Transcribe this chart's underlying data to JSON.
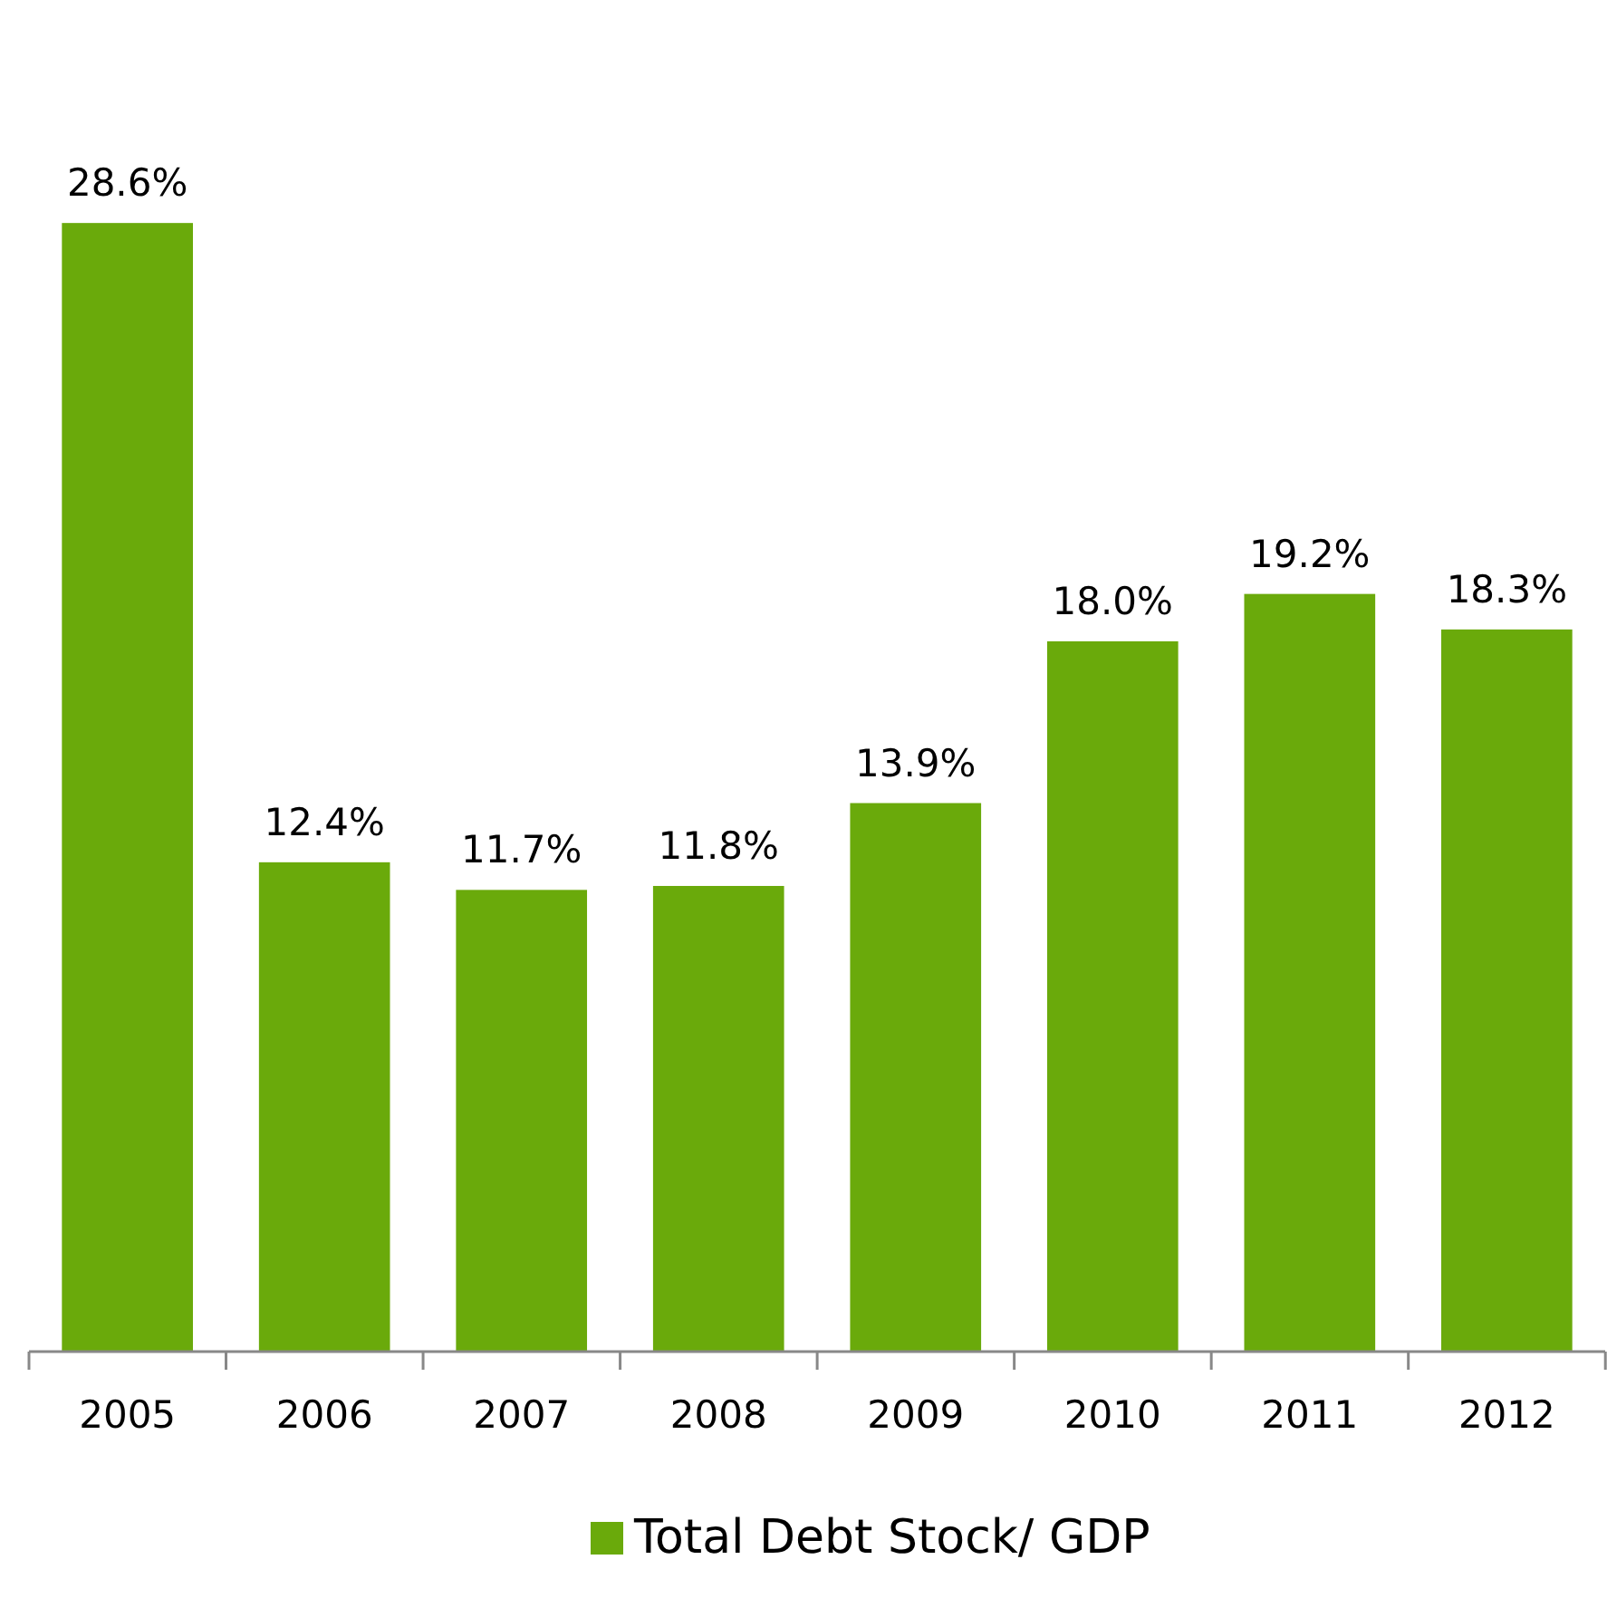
{
  "chart_data": {
    "type": "bar",
    "categories": [
      "2005",
      "2006",
      "2007",
      "2008",
      "2009",
      "2010",
      "2011",
      "2012"
    ],
    "series": [
      {
        "name": "Total Debt Stock/ GDP",
        "color": "#6aaa0b",
        "values": [
          28.6,
          12.4,
          11.7,
          11.8,
          13.9,
          18.0,
          19.2,
          18.3
        ],
        "value_labels": [
          "28.6%",
          "12.4%",
          "11.7%",
          "11.8%",
          "13.9%",
          "18.0%",
          "19.2%",
          "18.3%"
        ]
      }
    ],
    "legend": "bottom",
    "tick_labels": "x"
  }
}
